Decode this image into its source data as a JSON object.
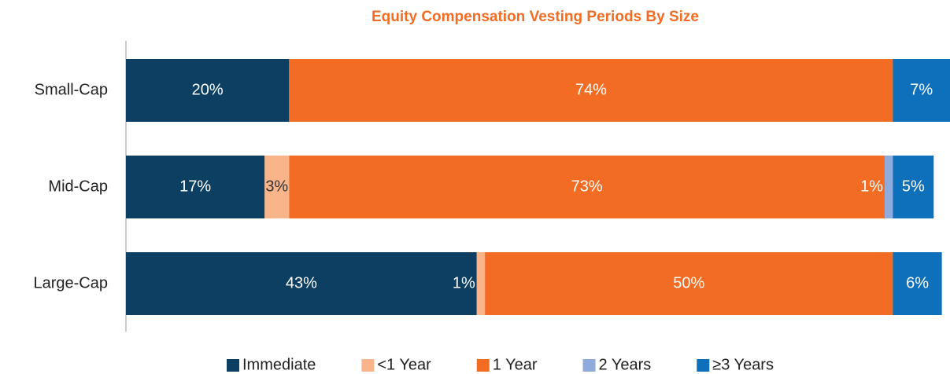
{
  "chart_data": {
    "type": "stacked_bar_horizontal",
    "title": "Equity Compensation Vesting Periods By Size",
    "categories": [
      "Small-Cap",
      "Mid-Cap",
      "Large-Cap"
    ],
    "xlim": [
      0,
      101
    ],
    "legend": "bottom",
    "series": [
      {
        "name": "Immediate",
        "color": "#0d3f63",
        "values": [
          20,
          17,
          43
        ],
        "value_labels": [
          "20%",
          "17%",
          "43%"
        ]
      },
      {
        "name": "<1 Year",
        "color": "#f9b48a",
        "values": [
          0,
          3,
          1
        ],
        "value_labels": [
          null,
          "3%",
          "1%"
        ]
      },
      {
        "name": "1 Year",
        "color": "#f26c24",
        "values": [
          74,
          73,
          50
        ],
        "value_labels": [
          "74%",
          "73%",
          "50%"
        ]
      },
      {
        "name": "2 Years",
        "color": "#8faadc",
        "values": [
          0,
          1,
          0
        ],
        "value_labels": [
          null,
          "1%",
          null
        ]
      },
      {
        "name": "≥3 Years",
        "color": "#0e6fba",
        "values": [
          7,
          5,
          6
        ],
        "value_labels": [
          "7%",
          "5%",
          "6%"
        ]
      }
    ]
  }
}
